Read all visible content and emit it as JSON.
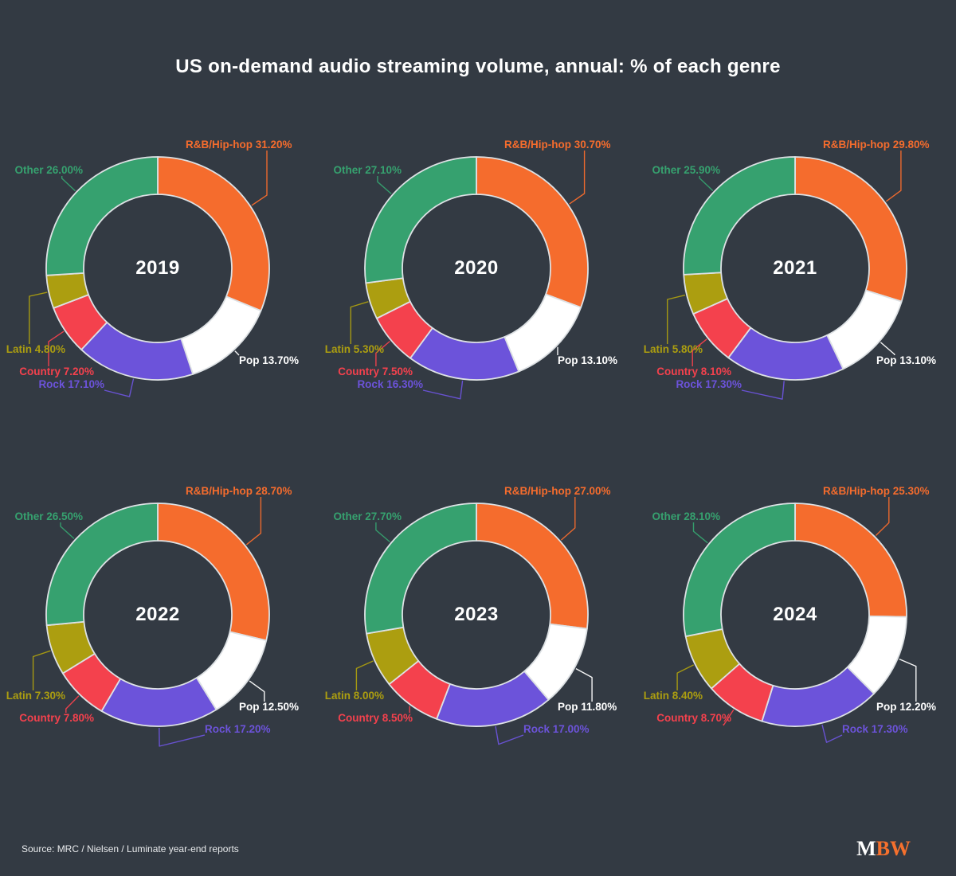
{
  "page": {
    "title": "US on-demand audio streaming volume, annual: % of each genre",
    "source": "Source: MRC / Nielsen / Luminate year-end reports",
    "logo": {
      "m": "M",
      "bw": "BW"
    }
  },
  "colors": {
    "background": "#333A43",
    "title_text": "#FFFFFF",
    "source_text": "#E9EBED",
    "logo_m": "#FFFFFF",
    "logo_bw": "#F5702D",
    "slice_stroke": "#DDE1E4",
    "rnb_hiphop": "#F56C2D",
    "pop": "#FFFFFF",
    "rock": "#6C53DA",
    "country": "#F4414D",
    "latin": "#AC9E10",
    "other": "#36A16F"
  },
  "chart_data": [
    {
      "type": "pie",
      "donut": true,
      "title": "2019",
      "labels": [
        "R&B/Hip-hop",
        "Pop",
        "Rock",
        "Country",
        "Latin",
        "Other"
      ],
      "values": [
        31.2,
        13.7,
        17.1,
        7.2,
        4.8,
        26.0
      ],
      "colors": [
        "#F56C2D",
        "#FFFFFF",
        "#6C53DA",
        "#F4414D",
        "#AC9E10",
        "#36A16F"
      ],
      "value_format": "label 00.00%"
    },
    {
      "type": "pie",
      "donut": true,
      "title": "2020",
      "labels": [
        "R&B/Hip-hop",
        "Pop",
        "Rock",
        "Country",
        "Latin",
        "Other"
      ],
      "values": [
        30.7,
        13.1,
        16.3,
        7.5,
        5.3,
        27.1
      ],
      "colors": [
        "#F56C2D",
        "#FFFFFF",
        "#6C53DA",
        "#F4414D",
        "#AC9E10",
        "#36A16F"
      ],
      "value_format": "label 00.00%"
    },
    {
      "type": "pie",
      "donut": true,
      "title": "2021",
      "labels": [
        "R&B/Hip-hop",
        "Pop",
        "Rock",
        "Country",
        "Latin",
        "Other"
      ],
      "values": [
        29.8,
        13.1,
        17.3,
        8.1,
        5.8,
        25.9
      ],
      "colors": [
        "#F56C2D",
        "#FFFFFF",
        "#6C53DA",
        "#F4414D",
        "#AC9E10",
        "#36A16F"
      ],
      "value_format": "label 00.00%"
    },
    {
      "type": "pie",
      "donut": true,
      "title": "2022",
      "labels": [
        "R&B/Hip-hop",
        "Pop",
        "Rock",
        "Country",
        "Latin",
        "Other"
      ],
      "values": [
        28.7,
        12.5,
        17.2,
        7.8,
        7.3,
        26.5
      ],
      "colors": [
        "#F56C2D",
        "#FFFFFF",
        "#6C53DA",
        "#F4414D",
        "#AC9E10",
        "#36A16F"
      ],
      "value_format": "label 00.00%"
    },
    {
      "type": "pie",
      "donut": true,
      "title": "2023",
      "labels": [
        "R&B/Hip-hop",
        "Pop",
        "Rock",
        "Country",
        "Latin",
        "Other"
      ],
      "values": [
        27.0,
        11.8,
        17.0,
        8.5,
        8.0,
        27.7
      ],
      "colors": [
        "#F56C2D",
        "#FFFFFF",
        "#6C53DA",
        "#F4414D",
        "#AC9E10",
        "#36A16F"
      ],
      "value_format": "label 00.00%"
    },
    {
      "type": "pie",
      "donut": true,
      "title": "2024",
      "labels": [
        "R&B/Hip-hop",
        "Pop",
        "Rock",
        "Country",
        "Latin",
        "Other"
      ],
      "values": [
        25.3,
        12.2,
        17.3,
        8.7,
        8.4,
        28.1
      ],
      "colors": [
        "#F56C2D",
        "#FFFFFF",
        "#6C53DA",
        "#F4414D",
        "#AC9E10",
        "#36A16F"
      ],
      "value_format": "label 00.00%"
    }
  ]
}
